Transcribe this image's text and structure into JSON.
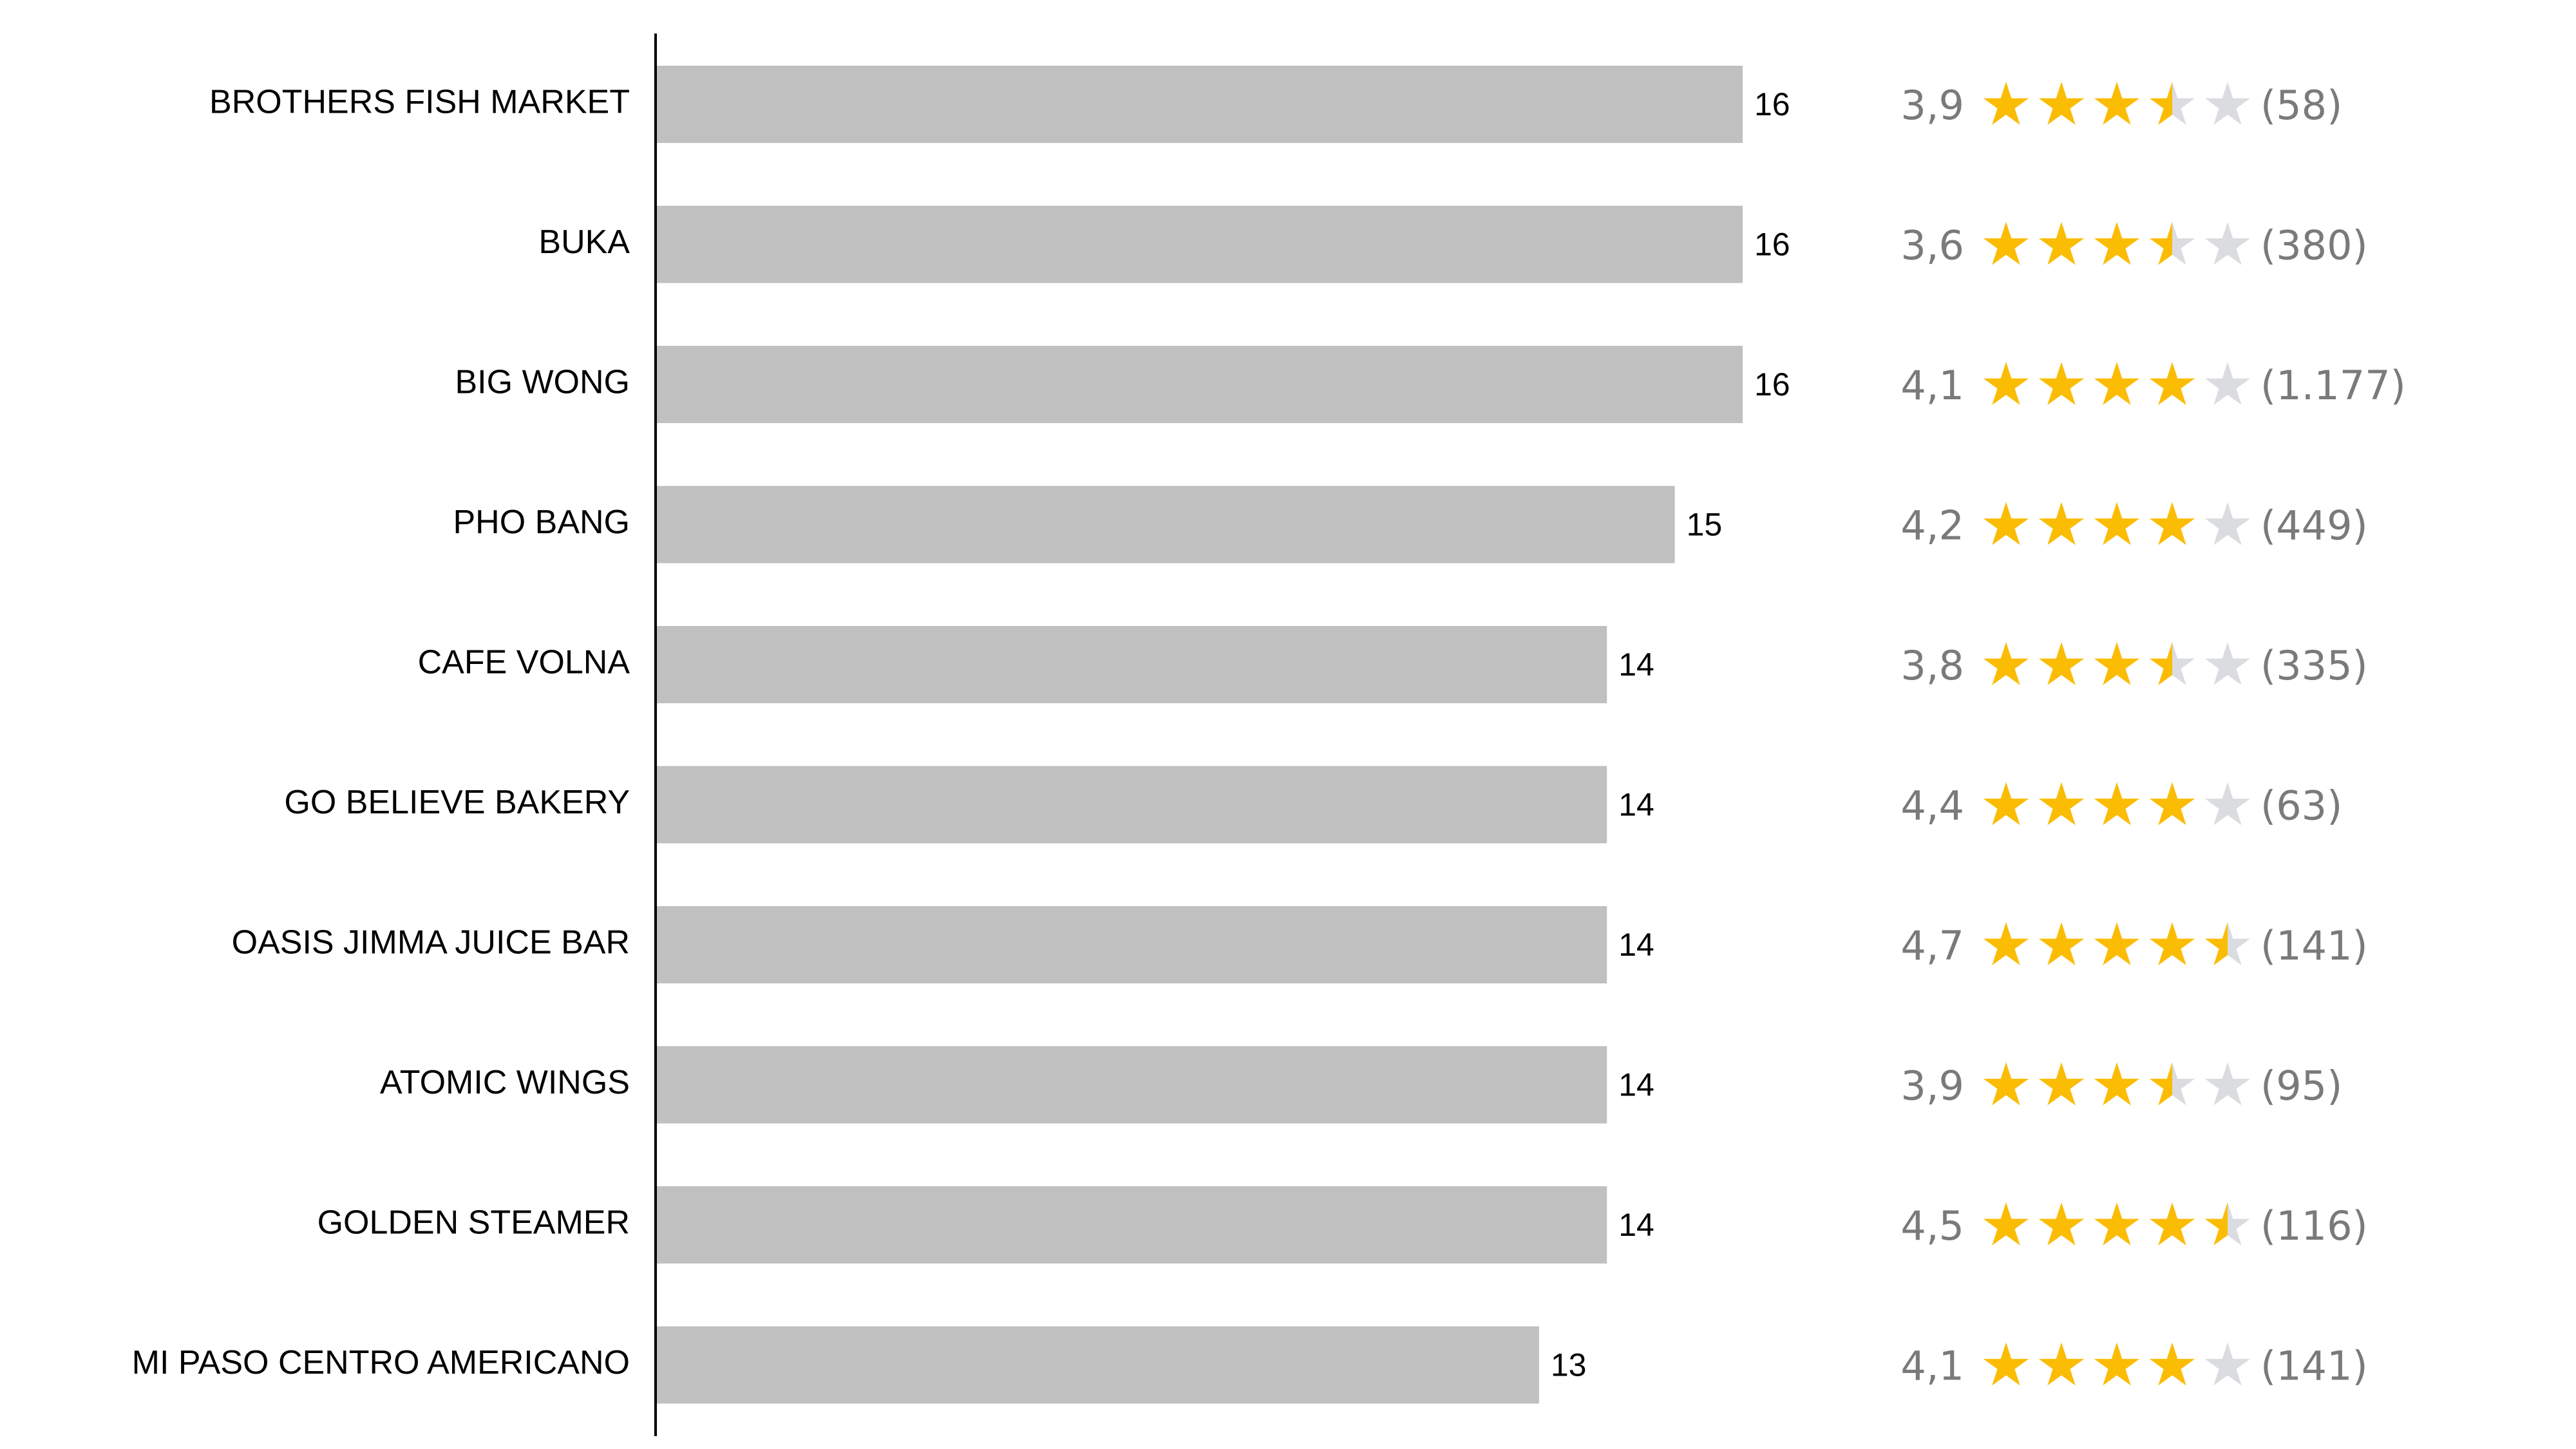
{
  "chart_data": {
    "type": "bar",
    "orientation": "horizontal",
    "categories": [
      "BROTHERS FISH MARKET",
      "BUKA",
      "BIG WONG",
      "PHO BANG",
      "CAFE VOLNA",
      "GO BELIEVE BAKERY",
      "OASIS JIMMA JUICE BAR",
      "ATOMIC WINGS",
      "GOLDEN STEAMER",
      "MI PASO CENTRO AMERICANO"
    ],
    "values": [
      16,
      16,
      16,
      15,
      14,
      14,
      14,
      14,
      14,
      13
    ],
    "value_labels": [
      "16",
      "16",
      "16",
      "15",
      "14",
      "14",
      "14",
      "14",
      "14",
      "13"
    ],
    "ratings": [
      3.9,
      3.6,
      4.1,
      4.2,
      3.8,
      4.4,
      4.7,
      3.9,
      4.5,
      4.1
    ],
    "rating_labels": [
      "3,9",
      "3,6",
      "4,1",
      "4,2",
      "3,8",
      "4,4",
      "4,7",
      "3,9",
      "4,5",
      "4,1"
    ],
    "review_counts": [
      "(58)",
      "(380)",
      "(1.177)",
      "(449)",
      "(335)",
      "(63)",
      "(141)",
      "(95)",
      "(116)",
      "(141)"
    ],
    "xlim": [
      0,
      16
    ],
    "grid": false,
    "legend": "none",
    "title": "",
    "xlabel": "",
    "ylabel": "",
    "colors": {
      "bar": "#c0c0c0",
      "axis": "#000000",
      "star_filled": "#fbbc04",
      "star_empty": "#dadce0",
      "rating_text": "#7a7a7a"
    }
  }
}
